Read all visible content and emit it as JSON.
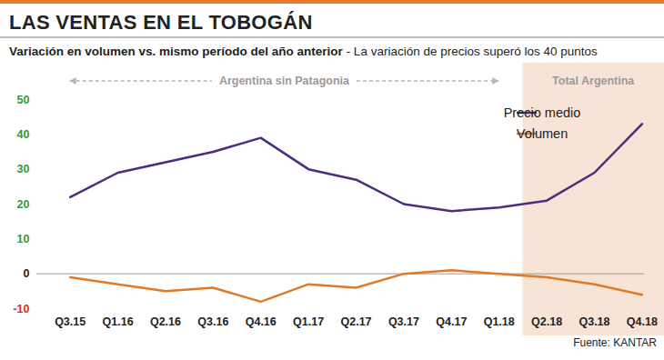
{
  "chart_data": {
    "type": "line",
    "title": "LAS VENTAS EN EL TOBOGÁN",
    "subtitle": "Variación en volumen vs. mismo período del año anterior",
    "note": "- La variación de precios superó los 40 puntos",
    "source": "Fuente: KANTAR",
    "categories": [
      "Q3.15",
      "Q1.16",
      "Q2.16",
      "Q3.16",
      "Q4.16",
      "Q1.17",
      "Q2.17",
      "Q3.17",
      "Q4.17",
      "Q1.18",
      "Q2.18",
      "Q3.18",
      "Q4.18"
    ],
    "series": [
      {
        "name": "Precio medio",
        "color": "#4b2d7f",
        "values": [
          22,
          29,
          32,
          35,
          39,
          30,
          27,
          20,
          18,
          19,
          21,
          29,
          43
        ]
      },
      {
        "name": "Volumen",
        "color": "#e07a2a",
        "values": [
          -1,
          -3,
          -5,
          -4,
          -8,
          -3,
          -4,
          0,
          1,
          0,
          -1,
          -3,
          -6
        ]
      }
    ],
    "ylim": [
      -10,
      50
    ],
    "yticks": [
      -10,
      0,
      10,
      20,
      30,
      40,
      50
    ],
    "grid": false,
    "legend": "top-right",
    "annotations": [
      {
        "text": "Argentina sin Patagonia",
        "from": "Q3.15",
        "to": "Q1.18",
        "line_style": "dashed"
      },
      {
        "text": "Total Argentina",
        "from": "Q2.18",
        "to": "Q4.18",
        "color": "#f7e4d6"
      }
    ]
  }
}
